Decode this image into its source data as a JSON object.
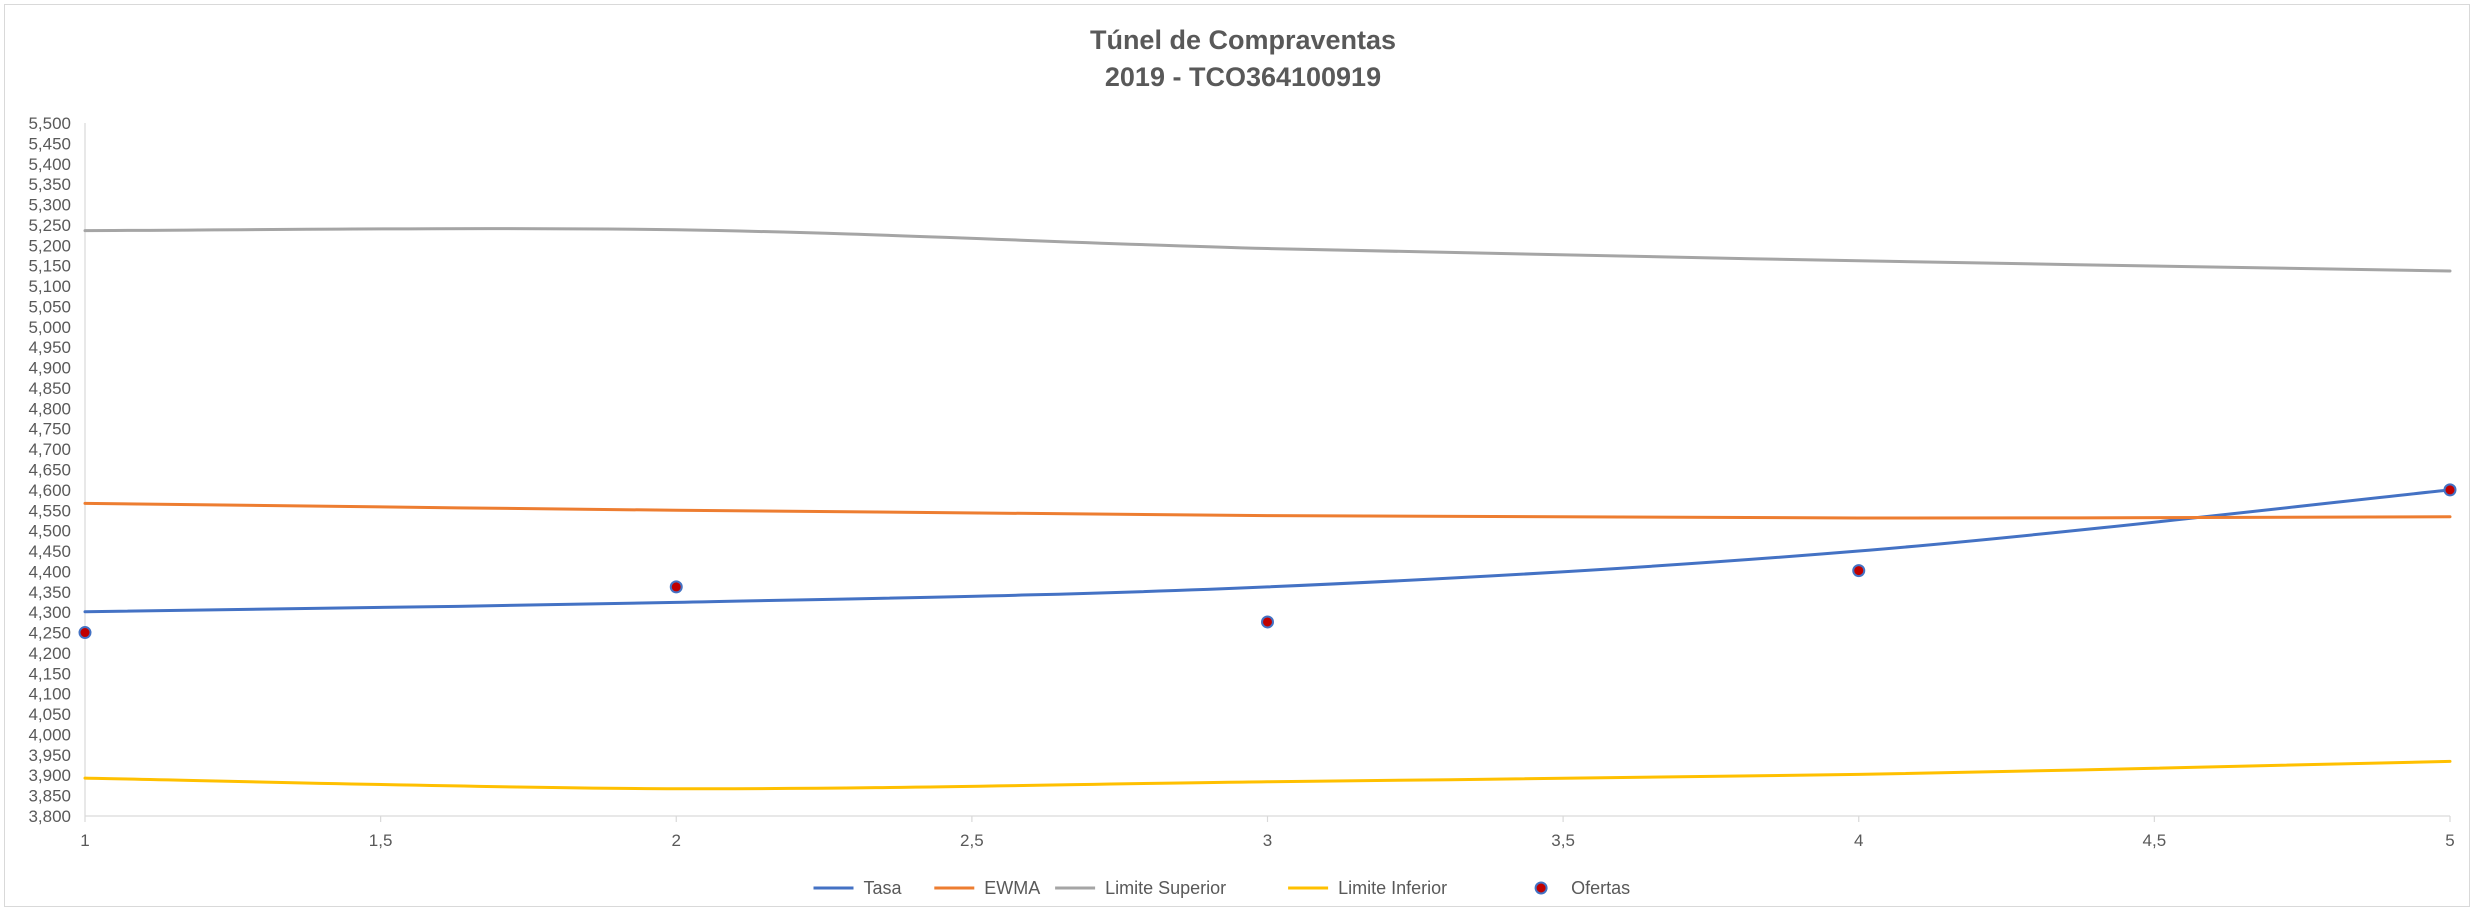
{
  "chart_data": {
    "type": "line",
    "title": "Túnel de Compraventas",
    "subtitle": "2019 - TCO364100919",
    "xlabel": "",
    "ylabel": "",
    "xlim": [
      1,
      5
    ],
    "ylim": [
      3800,
      5500
    ],
    "x_ticks": [
      1,
      1.5,
      2,
      2.5,
      3,
      3.5,
      4,
      4.5,
      5
    ],
    "x_tick_labels": [
      "1",
      "1,5",
      "2",
      "2,5",
      "3",
      "3,5",
      "4",
      "4,5",
      "5"
    ],
    "y_ticks": [
      3800,
      3850,
      3900,
      3950,
      4000,
      4050,
      4100,
      4150,
      4200,
      4250,
      4300,
      4350,
      4400,
      4450,
      4500,
      4550,
      4600,
      4650,
      4700,
      4750,
      4800,
      4850,
      4900,
      4950,
      5000,
      5050,
      5100,
      5150,
      5200,
      5250,
      5300,
      5350,
      5400,
      5450,
      5500
    ],
    "y_tick_labels": [
      "3,800",
      "3,850",
      "3,900",
      "3,950",
      "4,000",
      "4,050",
      "4,100",
      "4,150",
      "4,200",
      "4,250",
      "4,300",
      "4,350",
      "4,400",
      "4,450",
      "4,500",
      "4,550",
      "4,600",
      "4,650",
      "4,700",
      "4,750",
      "4,800",
      "4,850",
      "4,900",
      "4,950",
      "5,000",
      "5,050",
      "5,100",
      "5,150",
      "5,200",
      "5,250",
      "5,300",
      "5,350",
      "5,400",
      "5,450",
      "5,500"
    ],
    "grid": false,
    "legend_position": "bottom",
    "series": [
      {
        "name": "Tasa",
        "kind": "line",
        "color": "#4472C4",
        "x": [
          1,
          2,
          3,
          4,
          5
        ],
        "values": [
          4301,
          4324,
          4362,
          4450,
          4600
        ]
      },
      {
        "name": "EWMA",
        "kind": "line",
        "color": "#ED7D31",
        "x": [
          1,
          2,
          3,
          4,
          5
        ],
        "values": [
          4567,
          4550,
          4537,
          4531,
          4534
        ]
      },
      {
        "name": "Limite Superior",
        "kind": "line",
        "color": "#A5A5A5",
        "x": [
          1,
          2,
          3,
          4,
          5
        ],
        "values": [
          5236,
          5238,
          5192,
          5162,
          5137
        ]
      },
      {
        "name": "Limite Inferior",
        "kind": "line",
        "color": "#FFC000",
        "x": [
          1,
          2,
          3,
          4,
          5
        ],
        "values": [
          3893,
          3867,
          3884,
          3902,
          3934
        ]
      },
      {
        "name": "Ofertas",
        "kind": "scatter",
        "color": "#C00000",
        "edge_color": "#4472C4",
        "x": [
          1,
          2,
          3,
          4,
          5
        ],
        "values": [
          4250,
          4362,
          4276,
          4402,
          4600
        ]
      }
    ]
  }
}
